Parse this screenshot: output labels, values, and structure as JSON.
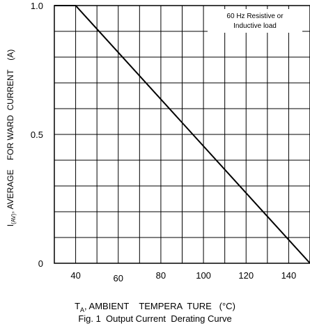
{
  "chart_data": {
    "type": "line",
    "xlim": [
      30,
      150
    ],
    "ylim": [
      0,
      1.0
    ],
    "x_ticks": [
      40,
      60,
      80,
      100,
      120,
      140
    ],
    "y_ticks": [
      0,
      0.5,
      1.0
    ],
    "x_tick_labels": [
      "40",
      "60",
      "80",
      "100",
      "120",
      "140"
    ],
    "y_tick_labels": [
      "0",
      "0.5",
      "1.0"
    ],
    "grid": true,
    "x_grid_step": 10,
    "y_grid_step": 0.1,
    "series": [
      {
        "x": [
          30,
          40,
          150
        ],
        "y": [
          1.0,
          1.0,
          0.0
        ]
      }
    ],
    "annotation": [
      "60 Hz Resistive  or",
      "Inductive load"
    ],
    "ylabel": {
      "prefix": "I",
      "subscript": "(AV)",
      "rest": ", AVERAGE    FOR WARD  CURRENT    (A)"
    },
    "xlabel": {
      "prefix": "T",
      "subscript": "A",
      "rest": ", AMBIENT    TEMPERA  TURE   (°C)"
    },
    "caption": "Fig. 1  Output Current  Derating Curve"
  }
}
